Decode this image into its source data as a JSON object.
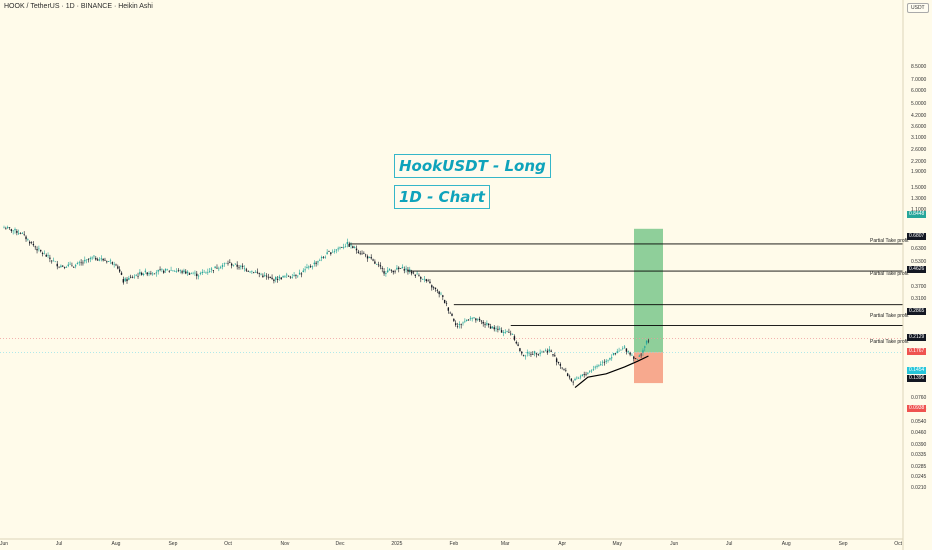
{
  "header": {
    "title": "HOOK / TetherUS · 1D · BINANCE · Heikin Ashi"
  },
  "currency_label": "USDT",
  "annotations": {
    "line1": "HookUSDT - Long",
    "line2": "1D - Chart"
  },
  "partial_take_profit_label": "Partial Take profit",
  "price_labels": [
    {
      "text": "0.8448",
      "color": "#26a69a"
    },
    {
      "text": "0.6807",
      "color": "#131722"
    },
    {
      "text": "0.4626",
      "color": "#131722"
    },
    {
      "text": "0.2865",
      "color": "#131722"
    },
    {
      "text": "0.2129",
      "color": "#131722"
    },
    {
      "text": "0.1767",
      "color": "#ef5350"
    },
    {
      "text": "0.1454",
      "color": "#26c6da"
    },
    {
      "text": "0.1396",
      "color": "#131722"
    },
    {
      "text": "0.0938",
      "color": "#ef5350"
    }
  ],
  "chart_data": {
    "type": "candlestick",
    "chart_style": "Heikin Ashi",
    "symbol": "HOOK / TetherUS",
    "interval": "1D",
    "exchange": "BINANCE",
    "y_scale": "log",
    "y_ticks": [
      "8.5000",
      "7.0000",
      "6.0000",
      "5.0000",
      "4.2000",
      "3.6000",
      "3.1000",
      "2.6000",
      "2.2000",
      "1.9000",
      "1.5000",
      "1.3000",
      "1.1000",
      "0.7500",
      "0.6300",
      "0.5300",
      "0.3700",
      "0.3100",
      "0.2600",
      "0.1100",
      "0.0760",
      "0.0640",
      "0.0540",
      "0.0460",
      "0.0390",
      "0.0335",
      "0.0285",
      "0.0245",
      "0.0210"
    ],
    "x_ticks": [
      "Jun",
      "Jul",
      "Aug",
      "Sep",
      "Oct",
      "Nov",
      "Dec",
      "2025",
      "Feb",
      "Mar",
      "Apr",
      "May",
      "Jun",
      "Jul",
      "Aug",
      "Sep",
      "Oct"
    ],
    "series_points": [
      {
        "date": "2024-06-01",
        "close": 0.86
      },
      {
        "date": "2024-06-10",
        "close": 0.8
      },
      {
        "date": "2024-06-20",
        "close": 0.62
      },
      {
        "date": "2024-07-01",
        "close": 0.5
      },
      {
        "date": "2024-07-10",
        "close": 0.5
      },
      {
        "date": "2024-07-20",
        "close": 0.56
      },
      {
        "date": "2024-08-01",
        "close": 0.52
      },
      {
        "date": "2024-08-05",
        "close": 0.4
      },
      {
        "date": "2024-08-15",
        "close": 0.45
      },
      {
        "date": "2024-09-01",
        "close": 0.47
      },
      {
        "date": "2024-09-15",
        "close": 0.44
      },
      {
        "date": "2024-10-01",
        "close": 0.52
      },
      {
        "date": "2024-10-15",
        "close": 0.46
      },
      {
        "date": "2024-10-25",
        "close": 0.41
      },
      {
        "date": "2024-11-10",
        "close": 0.45
      },
      {
        "date": "2024-11-25",
        "close": 0.6
      },
      {
        "date": "2024-12-05",
        "close": 0.68
      },
      {
        "date": "2024-12-15",
        "close": 0.58
      },
      {
        "date": "2024-12-25",
        "close": 0.46
      },
      {
        "date": "2025-01-05",
        "close": 0.48
      },
      {
        "date": "2025-01-15",
        "close": 0.42
      },
      {
        "date": "2025-01-25",
        "close": 0.33
      },
      {
        "date": "2025-02-03",
        "close": 0.21
      },
      {
        "date": "2025-02-10",
        "close": 0.24
      },
      {
        "date": "2025-02-25",
        "close": 0.2
      },
      {
        "date": "2025-03-05",
        "close": 0.19
      },
      {
        "date": "2025-03-10",
        "close": 0.14
      },
      {
        "date": "2025-03-25",
        "close": 0.15
      },
      {
        "date": "2025-04-07",
        "close": 0.095
      },
      {
        "date": "2025-04-20",
        "close": 0.12
      },
      {
        "date": "2025-05-05",
        "close": 0.155
      },
      {
        "date": "2025-05-12",
        "close": 0.13
      },
      {
        "date": "2025-05-18",
        "close": 0.175
      }
    ],
    "long_position": {
      "entry": 0.1454,
      "stop_loss": 0.0938,
      "target": 0.8448,
      "partial_take_profits": [
        0.2129,
        0.2865,
        0.4626,
        0.6807
      ]
    },
    "colors": {
      "up": "#26a69a",
      "down": "#131722",
      "target_zone": "#8fcf9a",
      "stop_zone": "#f7a98e"
    }
  }
}
